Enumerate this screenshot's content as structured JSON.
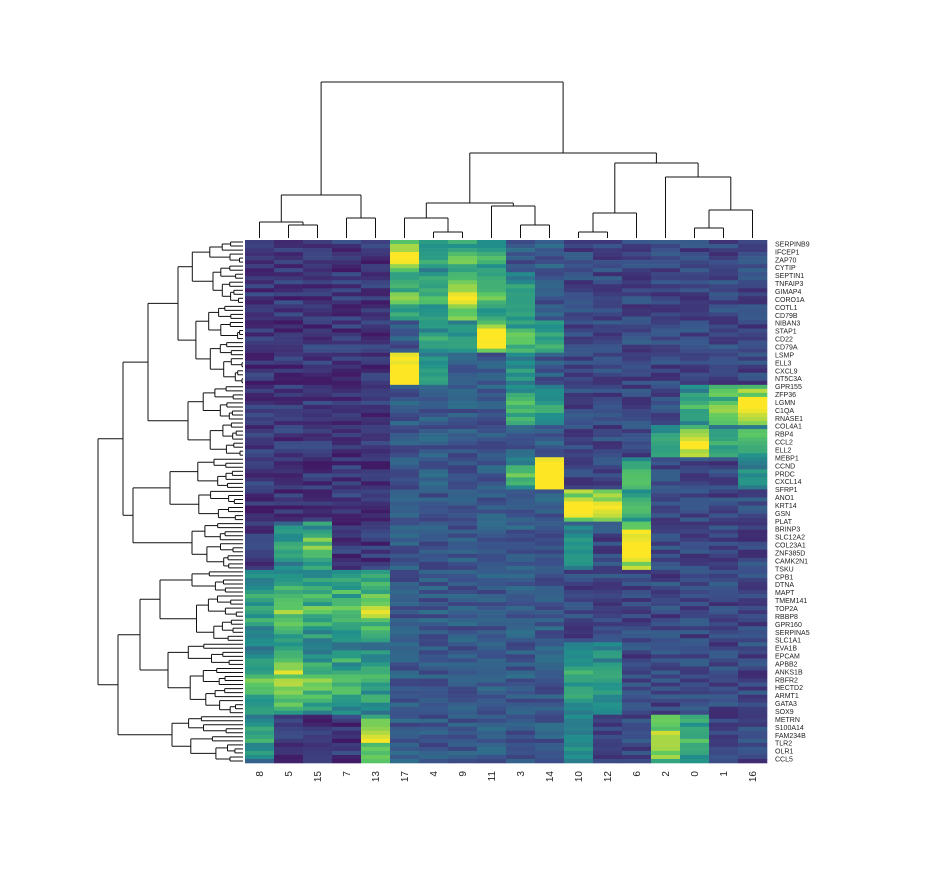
{
  "chart_data": {
    "type": "heatmap",
    "colormap": [
      "#440154",
      "#3b528b",
      "#21918c",
      "#5ec962",
      "#fde725"
    ],
    "columns": [
      "8",
      "5",
      "15",
      "7",
      "13",
      "17",
      "4",
      "9",
      "11",
      "3",
      "14",
      "10",
      "12",
      "6",
      "2",
      "0",
      "1",
      "16"
    ],
    "row_labels": [
      "SERPINB9",
      "IFCEP1",
      "ZAP70",
      "CYTIP",
      "SEPTIN1",
      "TNFAIP3",
      "GIMAP4",
      "CORO1A",
      "COTL1",
      "CD79B",
      "NIBAN3",
      "STAP1",
      "CD22",
      "CD79A",
      "LSMP",
      "ELL3",
      "CXCL9",
      "NT5C3A",
      "GPR155",
      "ZFP36",
      "LGMN",
      "C1QA",
      "RNASE1",
      "COL4A1",
      "RBP4",
      "CCL2",
      "ELL2",
      "MEBP1",
      "CCND",
      "PRDC",
      "CXCL14",
      "SFRP1",
      "ANO1",
      "KRT14",
      "GSN",
      "PLAT",
      "BRINP3",
      "SLC12A2",
      "COL23A1",
      "ZNF385D",
      "CAMK2N1",
      "TSKU",
      "CPB1",
      "DTNA",
      "MAPT",
      "TMEM141",
      "TOP2A",
      "RBBP8",
      "GPR160",
      "SERPINA5",
      "SLC1A1",
      "EVA1B",
      "EPCAM",
      "APBB2",
      "ANKS1B",
      "RBFR2",
      "HECTD2",
      "ARMT1",
      "GATA3",
      "SOX9",
      "METRN",
      "S100A14",
      "FAM234B",
      "TLR2",
      "OLR1",
      "CCL5"
    ],
    "grid": false,
    "legend": "none"
  }
}
